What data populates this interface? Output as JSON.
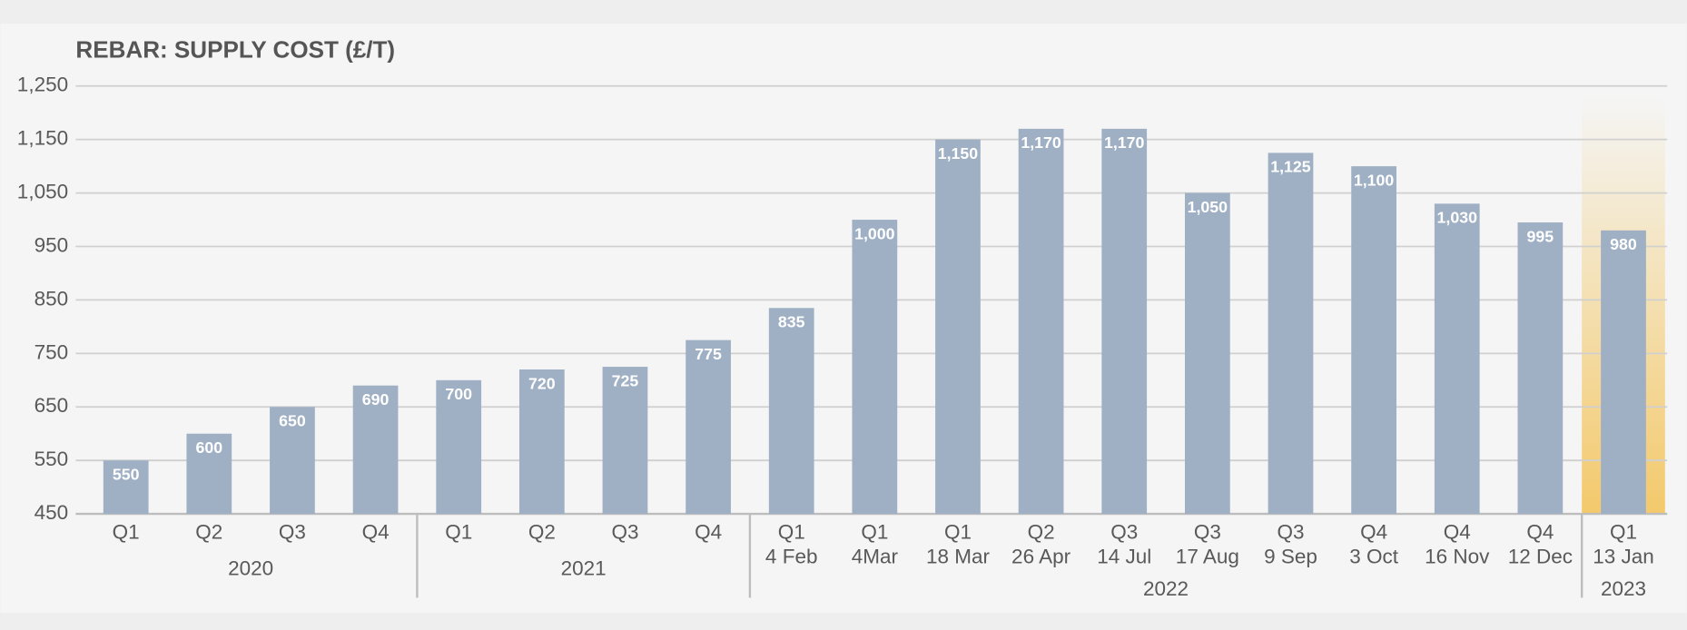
{
  "chart_data": {
    "type": "bar",
    "title": "REBAR: SUPPLY COST (£/T)",
    "groups": [
      {
        "label": "2020",
        "categories": [
          [
            "Q1"
          ],
          [
            "Q2"
          ],
          [
            "Q3"
          ],
          [
            "Q4"
          ]
        ]
      },
      {
        "label": "2021",
        "categories": [
          [
            "Q1"
          ],
          [
            "Q2"
          ],
          [
            "Q3"
          ],
          [
            "Q4"
          ]
        ]
      },
      {
        "label": "2022",
        "categories": [
          [
            "Q1",
            "4 Feb"
          ],
          [
            "Q1",
            "4Mar"
          ],
          [
            "Q1",
            "18 Mar"
          ],
          [
            "Q2",
            "26 Apr"
          ],
          [
            "Q3",
            "14 Jul"
          ],
          [
            "Q3",
            "17 Aug"
          ],
          [
            "Q3",
            "9 Sep"
          ],
          [
            "Q4",
            "3 Oct"
          ],
          [
            "Q4",
            "16 Nov"
          ],
          [
            "Q4",
            "12 Dec"
          ]
        ]
      },
      {
        "label": "2023",
        "categories": [
          [
            "Q1",
            "13 Jan"
          ]
        ],
        "highlight": true
      }
    ],
    "values": [
      550,
      600,
      650,
      690,
      700,
      720,
      725,
      775,
      835,
      1000,
      1150,
      1170,
      1170,
      1050,
      1125,
      1100,
      1030,
      995,
      980
    ],
    "value_labels": [
      "550",
      "600",
      "650",
      "690",
      "700",
      "720",
      "725",
      "775",
      "835",
      "1,000",
      "1,150",
      "1,170",
      "1,170",
      "1,050",
      "1,125",
      "1,100",
      "1,030",
      "995",
      "980"
    ],
    "color": "#9fb0c5",
    "highlight_color": "#f3c96b",
    "ylim": [
      450,
      1250
    ],
    "yticks": [
      450,
      550,
      650,
      750,
      850,
      950,
      {
        "value": 1050,
        "label": "1,050"
      },
      {
        "value": 1150,
        "label": "1,150"
      },
      {
        "value": 1250,
        "label": "1,250"
      }
    ],
    "grid": true
  }
}
